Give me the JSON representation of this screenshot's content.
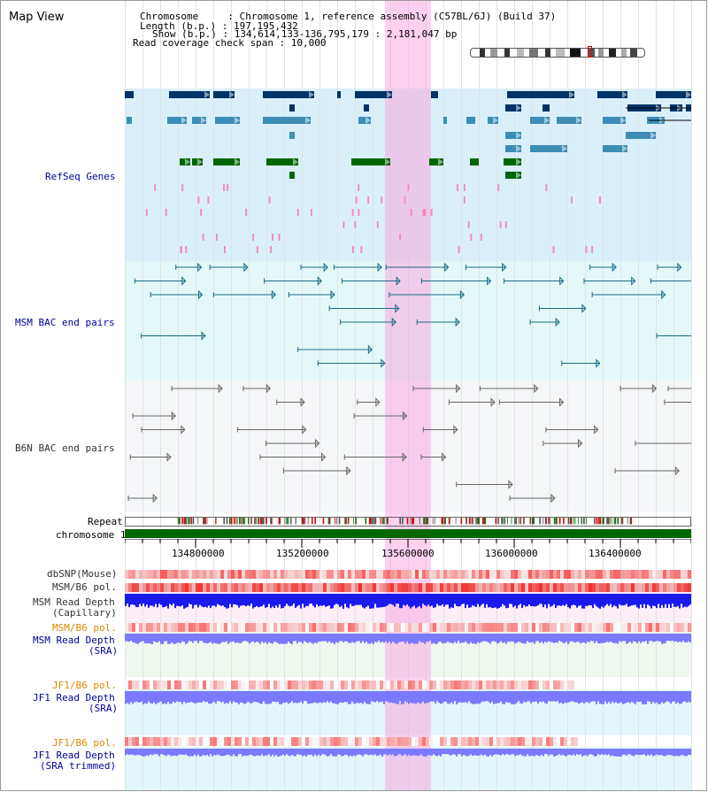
{
  "header": {
    "title": "Map View",
    "chromosome_line": "Chromosome     : Chromosome 1, reference assembly (C57BL/6J) (Build 37)",
    "length_line": "Length (b.p.) : 197,195,432",
    "show_line": "Show (b.p.) : 134,614,133-136,795,179 : 2,181,047 bp",
    "coverage_line": "Read coverage check span : 10,000"
  },
  "tracks": {
    "refseq": "RefSeq Genes",
    "msm_bac": "MSM BAC end pairs",
    "b6n_bac": "B6N BAC end pairs",
    "repeat": "Repeat",
    "chromosome": "chromosome 1",
    "dbsnp": "dbSNP(Mouse)",
    "msm_b6_pol": "MSM/B6 pol.",
    "msm_read_depth_cap_1": "MSM Read Depth",
    "msm_read_depth_cap_2": "(Capillary)",
    "msm_b6_pol_2": "MSM/B6 pol.",
    "msm_read_depth_sra_1": "MSM Read Depth",
    "msm_read_depth_sra_2": "(SRA)",
    "jf1_b6_pol": "JF1/B6 pol.",
    "jf1_read_depth_sra_1": "JF1 Read Depth",
    "jf1_read_depth_sra_2": "(SRA)",
    "jf1_b6_pol_2": "JF1/B6 pol.",
    "jf1_read_depth_trim_1": "JF1 Read Depth",
    "jf1_read_depth_trim_2": "(SRA trimmed)"
  },
  "axis": {
    "ticks": [
      "134800000",
      "135200000",
      "135600000",
      "136000000",
      "136400000"
    ]
  },
  "colors": {
    "highlight": "#f9c0e8",
    "refseq_bg": "#d9f0fb",
    "msm_bg": "#e3f9f9",
    "b6n_bg": "#f4f6f8",
    "gene_navy": "#003366",
    "gene_teal": "#3d8db5",
    "gene_green": "#006600",
    "depth_blue": "#1a1aee",
    "depth_light": "#7a7aff",
    "pol_red": "#ee2222"
  }
}
